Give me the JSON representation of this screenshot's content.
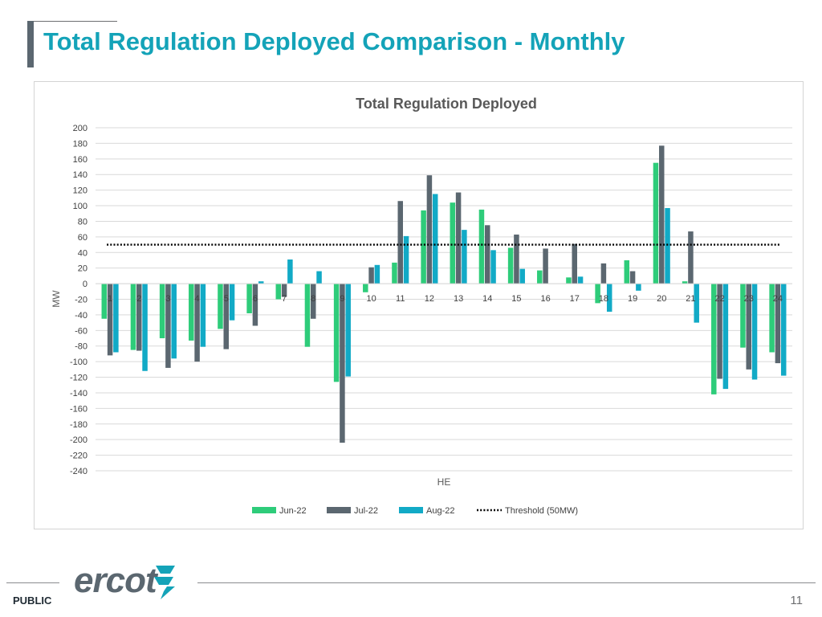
{
  "slide": {
    "title": "Total Regulation Deployed Comparison - Monthly",
    "footer_label": "PUBLIC",
    "page_number": "11",
    "logo_text": "ercot"
  },
  "colors": {
    "title": "#14a3b8",
    "jun": "#2ecc7a",
    "jul": "#5b6770",
    "aug": "#12aac6",
    "threshold": "#000000"
  },
  "chart_data": {
    "type": "bar",
    "title": "Total Regulation Deployed",
    "xlabel": "HE",
    "ylabel": "MW",
    "ylim": [
      -240,
      200
    ],
    "ytick_step": 20,
    "categories": [
      "1",
      "2",
      "3",
      "4",
      "5",
      "6",
      "7",
      "8",
      "9",
      "10",
      "11",
      "12",
      "13",
      "14",
      "15",
      "16",
      "17",
      "18",
      "19",
      "20",
      "21",
      "22",
      "23",
      "24"
    ],
    "series": [
      {
        "name": "Jun-22",
        "values": [
          -45,
          -85,
          -70,
          -73,
          -58,
          -38,
          -20,
          -81,
          -126,
          -11,
          27,
          94,
          104,
          95,
          46,
          17,
          8,
          -25,
          30,
          155,
          3,
          -142,
          -82,
          -88
        ]
      },
      {
        "name": "Jul-22",
        "values": [
          -92,
          -86,
          -108,
          -100,
          -84,
          -54,
          -17,
          -45,
          -204,
          21,
          106,
          139,
          117,
          75,
          63,
          45,
          51,
          26,
          16,
          177,
          67,
          -122,
          -110,
          -102
        ]
      },
      {
        "name": "Aug-22",
        "values": [
          -88,
          -112,
          -96,
          -81,
          -47,
          3,
          31,
          16,
          -119,
          24,
          61,
          115,
          69,
          43,
          19,
          0,
          9,
          -36,
          -9,
          97,
          -50,
          -135,
          -123,
          -118
        ]
      }
    ],
    "threshold": {
      "name": "Threshold (50MW)",
      "value": 50
    }
  }
}
